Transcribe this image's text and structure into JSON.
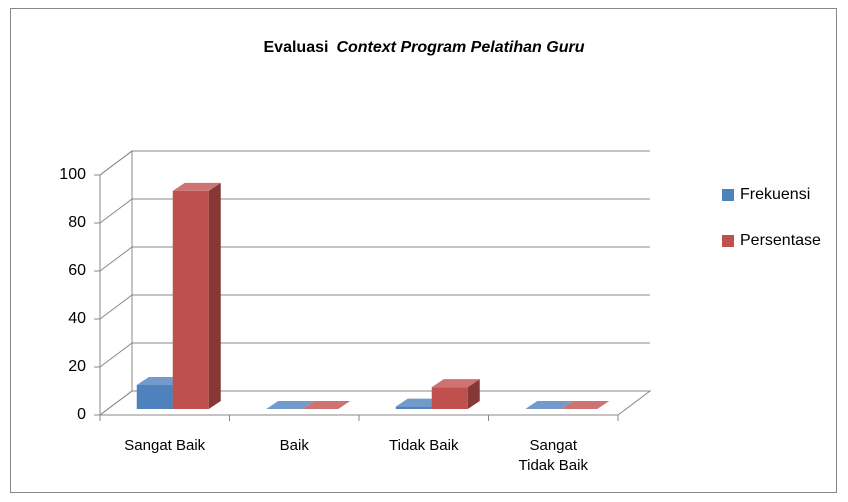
{
  "chart_data": {
    "type": "bar3d",
    "title": [
      "Evaluasi",
      "Context Program Pelatihan Guru"
    ],
    "categories": [
      "Sangat Baik",
      "Baik",
      "Tidak Baik",
      "Sangat Tidak Baik"
    ],
    "series": [
      {
        "name": "Frekuensi",
        "color": "#4f81bd",
        "values": [
          10,
          0,
          1,
          0
        ]
      },
      {
        "name": "Persentase",
        "color": "#c0504d",
        "values": [
          90.9,
          0,
          9.1,
          0
        ]
      }
    ],
    "ylim": [
      0,
      100
    ],
    "yticks": [
      0,
      20,
      40,
      60,
      80,
      100
    ],
    "grid": true,
    "legend": "right"
  }
}
